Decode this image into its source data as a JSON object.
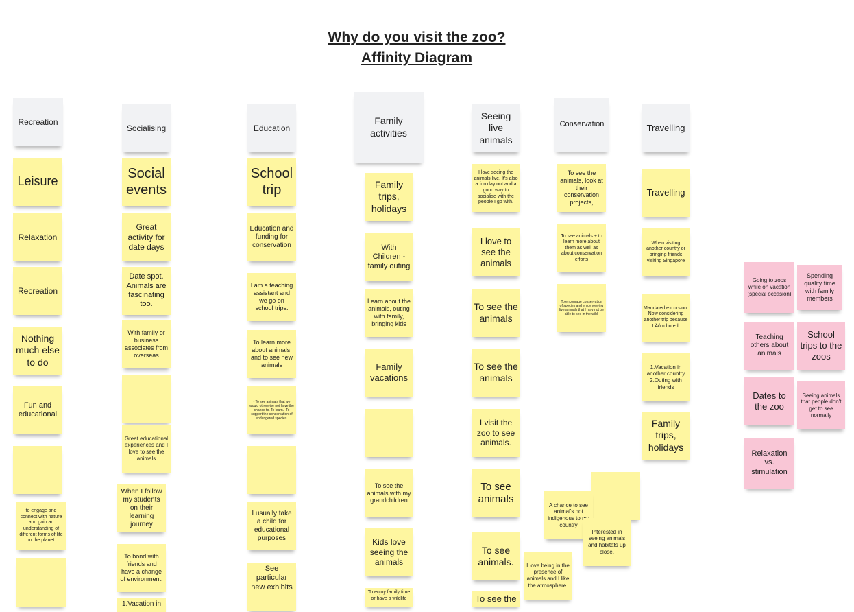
{
  "title": {
    "line1": "Why do you visit the zoo?",
    "line2": "Affinity Diagram"
  },
  "columns": {
    "recreation": {
      "header": "Recreation",
      "notes": [
        "Leisure",
        "Relaxation",
        "Recreation",
        "Nothing much else to do",
        "Fun and educational",
        "",
        "to engage and connect with nature and gain an understanding of different forms of life on the planet.",
        ""
      ]
    },
    "socialising": {
      "header": "Socialising",
      "notes": [
        "Social events",
        "Great activity for date days",
        "Date spot. Animals are fascinating too.",
        "With family or business associates from overseas",
        "",
        "Great educational experiences and I love to see the animals",
        "When I follow my students on their learning journey",
        "To bond with friends and have a change of environment.",
        "1.Vacation in"
      ]
    },
    "education": {
      "header": "Education",
      "notes": [
        "School trip",
        "Education and funding for conservation",
        "I am a teaching assistant and we go on school trips.",
        "To learn more about animals, and to see new animals",
        "- To see animals that we would otherwise not have the chance to. To learn. -To support the conservation of endangered species.",
        "",
        "I usually take a child for educational purposes",
        "See particular new exhibits"
      ]
    },
    "family": {
      "header": "Family activities",
      "notes": [
        "Family trips, holidays",
        "With Children - family outing",
        "Learn about the animals, outing with family, bringing kids",
        "Family vacations",
        "",
        "To see the animals with my grandchildren",
        "Kids love seeing the animals",
        "To enjoy family time or have a wildlife"
      ]
    },
    "seeing": {
      "header": "Seeing live animals",
      "notes": [
        "I love seeing the animals live. It's also a fun day out and a good way to socialise with the people I go with.",
        "I love to see the animals",
        "To see the animals",
        "To see the animals",
        "I visit the zoo to see animals.",
        "To see animals",
        "To see animals.",
        "To see the"
      ]
    },
    "conservation": {
      "header": "Conservation",
      "notes": [
        "To see the animals, look at their conservation projects,",
        "To see animals + to learn more about them as well as about conservation efforts",
        "To encourage conservation of species and enjoy viewing live animals that I may not be able to see in the wild."
      ]
    },
    "travelling": {
      "header": "Travelling",
      "notes": [
        "Travelling",
        "When visiting another country or bringing friends visiting Singapore",
        "Mandated excursion. Now considering another trip because I Äôm bored.",
        "1.Vacation in another country 2.Outing with friends",
        "Family trips, holidays"
      ]
    }
  },
  "loose_notes": {
    "pink": [
      "Going to zoos while on vacation (special occasion)",
      "Spending quality time with family members",
      "Teaching others about animals",
      "School trips to the zoos",
      "Dates to the zoo",
      "Seeing animals that people don't get to see normally",
      "Relaxation vs. stimulation"
    ],
    "yellow": [
      "",
      "A chance to see animal's not indigenous to my country",
      "Interested in seeing animals and habitats up close.",
      "I love being in the presence of animals and I like the atmosphere."
    ]
  },
  "colors": {
    "sticky_yellow": "#fef6a0",
    "sticky_pink": "#f9c6d6",
    "header_gray": "#f1f2f4"
  }
}
